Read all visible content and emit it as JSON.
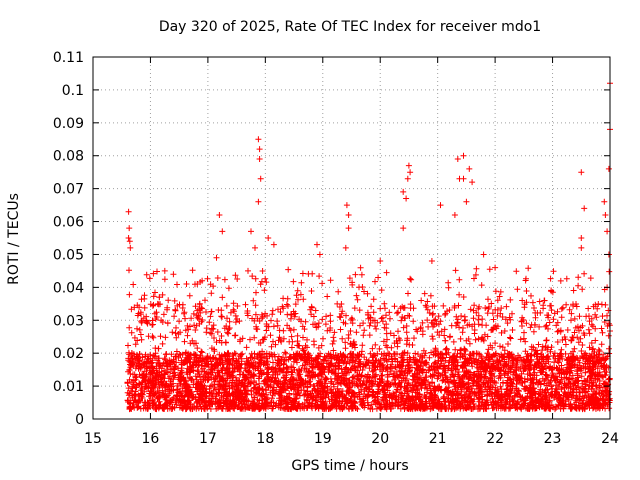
{
  "chart_data": {
    "type": "scatter",
    "title": "Day 320 of 2025, Rate Of TEC Index for receiver mdo1",
    "xlabel": "GPS time / hours",
    "ylabel": "ROTI / TECUs",
    "xlim": [
      15,
      24
    ],
    "ylim": [
      0,
      0.11
    ],
    "xticks": [
      15,
      16,
      17,
      18,
      19,
      20,
      21,
      22,
      23,
      24
    ],
    "xtick_labels": [
      "15",
      "16",
      "17",
      "18",
      "19",
      "20",
      "21",
      "22",
      "23",
      "24"
    ],
    "yticks": [
      0,
      0.01,
      0.02,
      0.03,
      0.04,
      0.05,
      0.06,
      0.07,
      0.08,
      0.09,
      0.1,
      0.11
    ],
    "ytick_labels": [
      "0",
      "0.01",
      "0.02",
      "0.03",
      "0.04",
      "0.05",
      "0.06",
      "0.07",
      "0.08",
      "0.09",
      "0.1",
      "0.11"
    ],
    "grid": true,
    "marker": "+",
    "series_color": "#ff0000",
    "data_start_hour": 15.6,
    "data_end_hour": 24.0,
    "typical_value_range": [
      0.003,
      0.02
    ],
    "peak_points": [
      {
        "x": 15.62,
        "y": 0.063
      },
      {
        "x": 15.63,
        "y": 0.058
      },
      {
        "x": 15.62,
        "y": 0.055
      },
      {
        "x": 15.64,
        "y": 0.054
      },
      {
        "x": 15.65,
        "y": 0.052
      },
      {
        "x": 16.25,
        "y": 0.045
      },
      {
        "x": 16.4,
        "y": 0.044
      },
      {
        "x": 16.9,
        "y": 0.042
      },
      {
        "x": 17.2,
        "y": 0.062
      },
      {
        "x": 17.25,
        "y": 0.057
      },
      {
        "x": 17.15,
        "y": 0.049
      },
      {
        "x": 17.75,
        "y": 0.057
      },
      {
        "x": 17.82,
        "y": 0.052
      },
      {
        "x": 17.88,
        "y": 0.085
      },
      {
        "x": 17.9,
        "y": 0.082
      },
      {
        "x": 17.9,
        "y": 0.079
      },
      {
        "x": 17.92,
        "y": 0.073
      },
      {
        "x": 17.88,
        "y": 0.066
      },
      {
        "x": 18.05,
        "y": 0.055
      },
      {
        "x": 18.15,
        "y": 0.053
      },
      {
        "x": 18.9,
        "y": 0.053
      },
      {
        "x": 18.95,
        "y": 0.05
      },
      {
        "x": 19.42,
        "y": 0.065
      },
      {
        "x": 19.45,
        "y": 0.062
      },
      {
        "x": 19.45,
        "y": 0.058
      },
      {
        "x": 19.4,
        "y": 0.052
      },
      {
        "x": 20.0,
        "y": 0.048
      },
      {
        "x": 20.4,
        "y": 0.069
      },
      {
        "x": 20.45,
        "y": 0.067
      },
      {
        "x": 20.5,
        "y": 0.077
      },
      {
        "x": 20.52,
        "y": 0.075
      },
      {
        "x": 20.48,
        "y": 0.073
      },
      {
        "x": 20.4,
        "y": 0.058
      },
      {
        "x": 20.9,
        "y": 0.048
      },
      {
        "x": 21.05,
        "y": 0.065
      },
      {
        "x": 21.3,
        "y": 0.062
      },
      {
        "x": 21.35,
        "y": 0.079
      },
      {
        "x": 21.45,
        "y": 0.08
      },
      {
        "x": 21.38,
        "y": 0.073
      },
      {
        "x": 21.45,
        "y": 0.073
      },
      {
        "x": 21.55,
        "y": 0.076
      },
      {
        "x": 21.6,
        "y": 0.072
      },
      {
        "x": 21.5,
        "y": 0.066
      },
      {
        "x": 21.8,
        "y": 0.05
      },
      {
        "x": 22.0,
        "y": 0.046
      },
      {
        "x": 23.5,
        "y": 0.075
      },
      {
        "x": 23.55,
        "y": 0.064
      },
      {
        "x": 23.5,
        "y": 0.055
      },
      {
        "x": 23.5,
        "y": 0.052
      },
      {
        "x": 23.9,
        "y": 0.066
      },
      {
        "x": 23.92,
        "y": 0.062
      },
      {
        "x": 23.95,
        "y": 0.057
      },
      {
        "x": 23.98,
        "y": 0.076
      },
      {
        "x": 24.0,
        "y": 0.088
      },
      {
        "x": 24.0,
        "y": 0.102
      },
      {
        "x": 23.98,
        "y": 0.05
      },
      {
        "x": 23.95,
        "y": 0.04
      }
    ]
  }
}
